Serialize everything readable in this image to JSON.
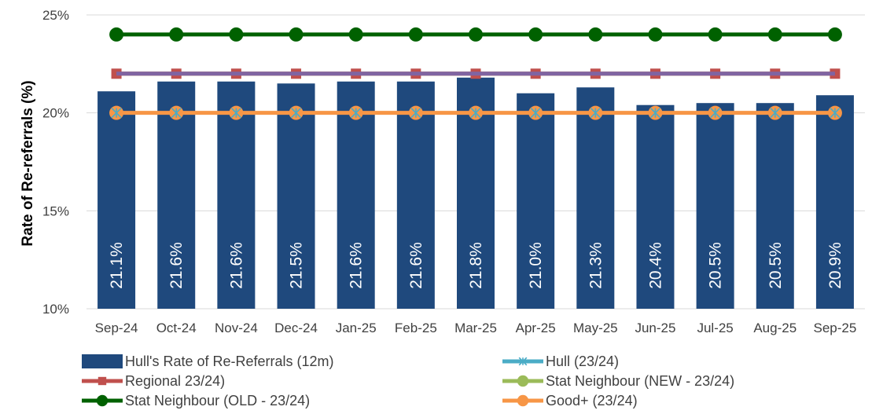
{
  "chart_data": {
    "type": "bar",
    "categories": [
      "Sep-24",
      "Oct-24",
      "Nov-24",
      "Dec-24",
      "Jan-25",
      "Feb-25",
      "Mar-25",
      "Apr-25",
      "May-25",
      "Jun-25",
      "Jul-25",
      "Aug-25",
      "Sep-25"
    ],
    "ylabel": "Rate of Re-referrals (%)",
    "xlabel": "",
    "ylim": [
      10,
      25
    ],
    "yticks": [
      "10%",
      "15%",
      "20%",
      "25%"
    ],
    "ytick_values": [
      10,
      15,
      20,
      25
    ],
    "grid": true,
    "legend_position": "bottom",
    "bar_series": {
      "name": "Hull's Rate of Re-Referrals (12m)",
      "color": "#1F497D",
      "values": [
        21.1,
        21.6,
        21.6,
        21.5,
        21.6,
        21.6,
        21.8,
        21.0,
        21.3,
        20.4,
        20.5,
        20.5,
        20.9
      ],
      "labels": [
        "21.1%",
        "21.6%",
        "21.6%",
        "21.5%",
        "21.6%",
        "21.6%",
        "21.8%",
        "21.0%",
        "21.3%",
        "20.4%",
        "20.5%",
        "20.5%",
        "20.9%"
      ]
    },
    "line_series": [
      {
        "name": "Stat Neighbour (OLD - 23/24)",
        "color": "#006100",
        "marker": "circle",
        "value": 24.0
      },
      {
        "name": "Stat Neighbour (NEW - 23/24)",
        "color": "#9BBB59",
        "marker": "circle",
        "value": 22.0
      },
      {
        "name": "Regional 23/24)",
        "color": "#C0504D",
        "marker": "square",
        "value": 22.0
      },
      {
        "name": "Good+ (23/24)",
        "color": "#F79646",
        "marker": "circle",
        "value": 20.0
      },
      {
        "name": "Hull (23/24)",
        "color": "#4BACC6",
        "marker": "star",
        "value": 20.0
      }
    ],
    "overlay_line": {
      "color": "#8064A2",
      "value": 22.0
    },
    "legend": [
      {
        "name": "Hull's Rate of Re-Referrals (12m)",
        "kind": "bar",
        "color": "#1F497D"
      },
      {
        "name": "Hull (23/24)",
        "kind": "line",
        "marker": "star",
        "color": "#4BACC6"
      },
      {
        "name": "Regional 23/24)",
        "kind": "line",
        "marker": "square",
        "color": "#C0504D"
      },
      {
        "name": "Stat Neighbour (NEW - 23/24)",
        "kind": "line",
        "marker": "circle",
        "color": "#9BBB59"
      },
      {
        "name": "Stat Neighbour (OLD - 23/24)",
        "kind": "line",
        "marker": "circle",
        "color": "#006100"
      },
      {
        "name": "Good+ (23/24)",
        "kind": "line",
        "marker": "circle",
        "color": "#F79646"
      }
    ],
    "grid_color": "#D9D9D9"
  }
}
